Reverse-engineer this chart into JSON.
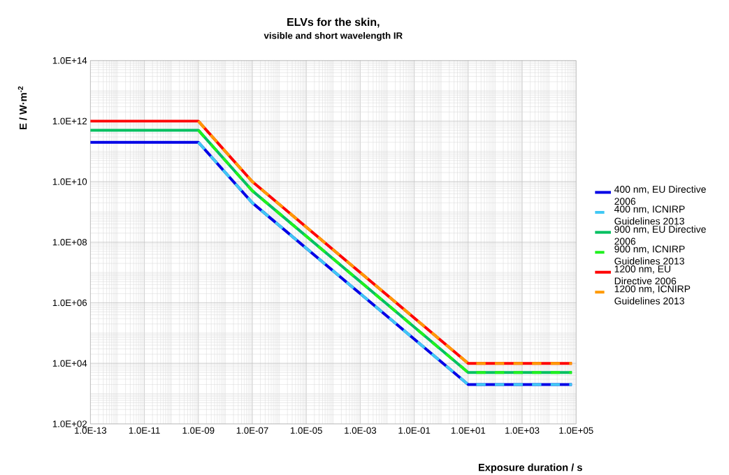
{
  "chart_data": {
    "type": "line",
    "title": "ELVs for the skin,",
    "subtitle": "visible and short wavelength IR",
    "xlabel": "Exposure duration / s",
    "ylabel": "E / W·m$^{-2}$",
    "log": "xy",
    "grid": true,
    "legend": "right",
    "marker": "none",
    "xlim": [
      1e-13,
      100000.0
    ],
    "ylim": [
      100,
      100000000000000.0
    ],
    "xticks": [
      {
        "value": 1e-13,
        "label": "1.0E-13"
      },
      {
        "value": 1e-11,
        "label": "1.0E-11"
      },
      {
        "value": 1e-09,
        "label": "1.0E-09"
      },
      {
        "value": 1e-07,
        "label": "1.0E-07"
      },
      {
        "value": 1e-05,
        "label": "1.0E-05"
      },
      {
        "value": 0.001,
        "label": "1.0E-03"
      },
      {
        "value": 0.1,
        "label": "1.0E-01"
      },
      {
        "value": 10,
        "label": "1.0E+01"
      },
      {
        "value": 1000,
        "label": "1.0E+03"
      },
      {
        "value": 100000,
        "label": "1.0E+05"
      }
    ],
    "yticks": [
      {
        "value": 100,
        "label": "1.0E+02"
      },
      {
        "value": 10000,
        "label": "1.0E+04"
      },
      {
        "value": 1000000,
        "label": "1.0E+06"
      },
      {
        "value": 100000000,
        "label": "1.0E+08"
      },
      {
        "value": 10000000000,
        "label": "1.0E+10"
      },
      {
        "value": 1000000000000,
        "label": "1.0E+12"
      },
      {
        "value": 100000000000000,
        "label": "1.0E+14"
      }
    ],
    "series": [
      {
        "name": "400 nm, EU Directive 2006",
        "color": "#0000e6",
        "line_style": "solid",
        "x": [
          1e-13,
          1e-09,
          1e-07,
          10,
          70000
        ],
        "values": [
          200000000000.0,
          200000000000.0,
          2000000000.0,
          2000,
          2000
        ]
      },
      {
        "name": "400 nm, ICNIRP Guidelines 2013",
        "color": "#40c8f4",
        "line_style": "dashed",
        "x": [
          1e-09,
          1e-07,
          10,
          70000
        ],
        "values": [
          200000000000.0,
          2000000000.0,
          2000,
          2000
        ]
      },
      {
        "name": "900 nm, EU Directive 2006",
        "color": "#00c060",
        "line_style": "solid",
        "x": [
          1e-13,
          1e-09,
          1e-07,
          10,
          70000
        ],
        "values": [
          500000000000.0,
          500000000000.0,
          5000000000.0,
          5000,
          5000
        ]
      },
      {
        "name": "900 nm, ICNIRP Guidelines 2013",
        "color": "#20f020",
        "line_style": "dashed",
        "x": [
          1e-09,
          1e-07,
          10,
          70000
        ],
        "values": [
          500000000000.0,
          5000000000.0,
          5000,
          5000
        ]
      },
      {
        "name": "1200 nm, EU Directive 2006",
        "color": "#ff0000",
        "line_style": "solid",
        "x": [
          1e-13,
          1e-09,
          1e-07,
          10,
          70000
        ],
        "values": [
          1000000000000.0,
          1000000000000.0,
          10000000000.0,
          10000,
          10000
        ]
      },
      {
        "name": "1200 nm, ICNIRP Guidelines 2013",
        "color": "#ff9900",
        "line_style": "dashed",
        "x": [
          1e-09,
          1e-07,
          10,
          70000
        ],
        "values": [
          1000000000000.0,
          10000000000.0,
          10000,
          10000
        ]
      }
    ]
  }
}
